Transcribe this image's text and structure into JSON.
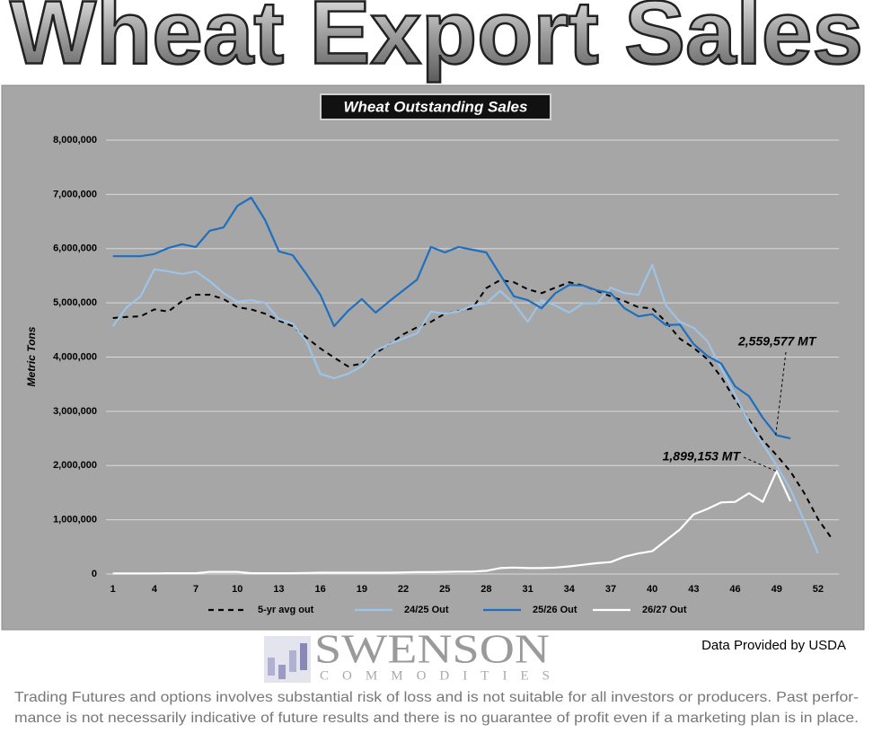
{
  "header": {
    "title": "Wheat Export Sales"
  },
  "chart_data": {
    "type": "line",
    "title": "Wheat Outstanding Sales",
    "y_label": "Metric Tons",
    "x": [
      1,
      2,
      3,
      4,
      5,
      6,
      7,
      8,
      9,
      10,
      11,
      12,
      13,
      14,
      15,
      16,
      17,
      18,
      19,
      20,
      21,
      22,
      23,
      24,
      25,
      26,
      27,
      28,
      29,
      30,
      31,
      32,
      33,
      34,
      35,
      36,
      37,
      38,
      39,
      40,
      41,
      42,
      43,
      44,
      45,
      46,
      47,
      48,
      49,
      50,
      51,
      52,
      53
    ],
    "xlim": [
      0.5,
      53.5
    ],
    "xticks": [
      1,
      4,
      7,
      10,
      13,
      16,
      19,
      22,
      25,
      28,
      31,
      34,
      37,
      40,
      43,
      46,
      49,
      52
    ],
    "ylim": [
      0,
      8000000
    ],
    "yticks": [
      0,
      {
        "value": 1000000,
        "label": "1,000,000"
      },
      {
        "value": 2000000,
        "label": "2,000,000"
      },
      {
        "value": 3000000,
        "label": "3,000,000"
      },
      {
        "value": 4000000,
        "label": "4,000,000"
      },
      {
        "value": 5000000,
        "label": "5,000,000"
      },
      {
        "value": 6000000,
        "label": "6,000,000"
      },
      {
        "value": 7000000,
        "label": "7,000,000"
      },
      {
        "value": 8000000,
        "label": "8,000,000"
      }
    ],
    "grid": true,
    "series": [
      {
        "name": "5-yr avg out",
        "color": "#000000",
        "dashed": true,
        "values": [
          4720000,
          4740000,
          4750000,
          4880000,
          4840000,
          5030000,
          5150000,
          5150000,
          5070000,
          4920000,
          4880000,
          4800000,
          4670000,
          4570000,
          4360000,
          4160000,
          3990000,
          3830000,
          3880000,
          4070000,
          4240000,
          4420000,
          4550000,
          4650000,
          4800000,
          4850000,
          4900000,
          5270000,
          5420000,
          5380000,
          5250000,
          5180000,
          5280000,
          5380000,
          5320000,
          5220000,
          5120000,
          5030000,
          4920000,
          4900000,
          4650000,
          4340000,
          4170000,
          3960000,
          3630000,
          3210000,
          2850000,
          2470000,
          2190000,
          1890000,
          1490000,
          1010000,
          650000
        ]
      },
      {
        "name": "24/25 Out",
        "color": "#9dc3e6",
        "dashed": false,
        "values": [
          4570000,
          4920000,
          5120000,
          5620000,
          5580000,
          5530000,
          5580000,
          5400000,
          5180000,
          5020000,
          5050000,
          5000000,
          4700000,
          4620000,
          4290000,
          3690000,
          3610000,
          3690000,
          3830000,
          4120000,
          4240000,
          4340000,
          4440000,
          4840000,
          4800000,
          4840000,
          4950000,
          4990000,
          5220000,
          4990000,
          4650000,
          5050000,
          4950000,
          4820000,
          4990000,
          4990000,
          5280000,
          5180000,
          5150000,
          5700000,
          4950000,
          4650000,
          4540000,
          4290000,
          3790000,
          3300000,
          2800000,
          2400000,
          2000000,
          1560000,
          980000,
          380000,
          null
        ]
      },
      {
        "name": "25/26 Out",
        "color": "#1f6fbf",
        "dashed": false,
        "values": [
          5860000,
          5860000,
          5860000,
          5900000,
          6010000,
          6080000,
          6030000,
          6330000,
          6390000,
          6790000,
          6940000,
          6530000,
          5950000,
          5880000,
          5530000,
          5150000,
          4570000,
          4850000,
          5070000,
          4820000,
          5030000,
          5230000,
          5430000,
          6030000,
          5930000,
          6030000,
          5980000,
          5930000,
          5520000,
          5120000,
          5050000,
          4900000,
          5180000,
          5330000,
          5320000,
          5230000,
          5180000,
          4900000,
          4750000,
          4790000,
          4590000,
          4600000,
          4240000,
          4020000,
          3880000,
          3460000,
          3280000,
          2880000,
          2559577,
          2500000,
          null,
          null,
          null
        ]
      },
      {
        "name": "26/27 Out",
        "color": "#ffffff",
        "dashed": false,
        "values": [
          10000,
          10000,
          10000,
          10000,
          15000,
          15000,
          15000,
          40000,
          40000,
          40000,
          15000,
          15000,
          15000,
          15000,
          20000,
          25000,
          25000,
          25000,
          25000,
          25000,
          25000,
          30000,
          35000,
          35000,
          40000,
          45000,
          45000,
          60000,
          110000,
          120000,
          110000,
          110000,
          120000,
          140000,
          170000,
          200000,
          220000,
          320000,
          380000,
          420000,
          620000,
          820000,
          1100000,
          1200000,
          1320000,
          1330000,
          1490000,
          1330000,
          1899153,
          1340000,
          null,
          null,
          null
        ]
      }
    ],
    "annotations": [
      {
        "text": "2,559,577 MT",
        "x": 49,
        "y": 2559577
      },
      {
        "text": "1,899,153 MT",
        "x": 49,
        "y": 1899153
      }
    ]
  },
  "footer": {
    "logo_name": "SWENSON",
    "logo_sub": "COMMODITIES",
    "source": "Data Provided by USDA",
    "disclaimer": [
      "Trading Futures and options involves substantial risk of loss and is not suitable for all investors or producers. Past perfor-",
      "mance is not necessarily indicative of future results and there is no guarantee of profit even if a marketing plan is in place."
    ]
  }
}
